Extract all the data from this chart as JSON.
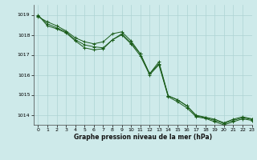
{
  "xlabel": "Graphe pression niveau de la mer (hPa)",
  "xlim": [
    -0.5,
    23
  ],
  "ylim": [
    1013.5,
    1019.5
  ],
  "yticks": [
    1014,
    1015,
    1016,
    1017,
    1018,
    1019
  ],
  "xticks": [
    0,
    1,
    2,
    3,
    4,
    5,
    6,
    7,
    8,
    9,
    10,
    11,
    12,
    13,
    14,
    15,
    16,
    17,
    18,
    19,
    20,
    21,
    22,
    23
  ],
  "background_color": "#ceeaea",
  "grid_color": "#aed4d4",
  "line_color": "#1a5c1a",
  "line1": [
    1018.9,
    1018.65,
    1018.45,
    1018.2,
    1017.85,
    1017.65,
    1017.55,
    1017.65,
    1018.05,
    1018.15,
    1017.7,
    1017.05,
    1016.05,
    1016.65,
    1014.95,
    1014.75,
    1014.45,
    1013.98,
    1013.88,
    1013.78,
    1013.6,
    1013.78,
    1013.9,
    1013.8
  ],
  "line2": [
    1018.95,
    1018.55,
    1018.35,
    1018.15,
    1017.75,
    1017.5,
    1017.4,
    1017.35,
    1017.75,
    1018.05,
    1017.6,
    1017.05,
    1016.05,
    1016.55,
    1014.95,
    1014.75,
    1014.45,
    1013.95,
    1013.85,
    1013.72,
    1013.57,
    1013.72,
    1013.85,
    1013.77
  ],
  "line3": [
    1019.0,
    1018.45,
    1018.3,
    1018.1,
    1017.7,
    1017.35,
    1017.25,
    1017.3,
    1017.75,
    1018.0,
    1017.55,
    1016.95,
    1016.0,
    1016.5,
    1014.9,
    1014.65,
    1014.35,
    1013.9,
    1013.82,
    1013.65,
    1013.5,
    1013.65,
    1013.8,
    1013.72
  ]
}
